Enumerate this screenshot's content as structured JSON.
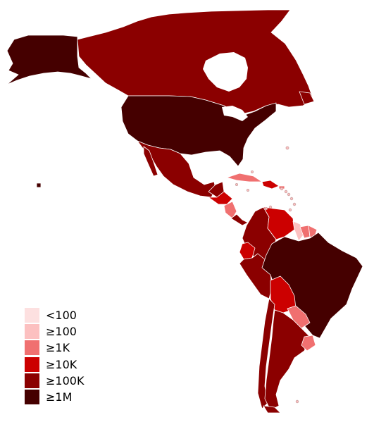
{
  "colors": {
    "lt100": "#fde0e0",
    "ge100": "#fcc0c0",
    "ge1k": "#f07070",
    "ge10k": "#cc0000",
    "ge100k": "#8b0000",
    "ge1m": "#450000"
  },
  "legend": [
    {
      "label": "<100",
      "color": "#fde0e0"
    },
    {
      "label": "≥100",
      "color": "#fcc0c0"
    },
    {
      "label": "≥1K",
      "color": "#f07070"
    },
    {
      "label": "≥10K",
      "color": "#cc0000"
    },
    {
      "label": "≥100K",
      "color": "#8b0000"
    },
    {
      "label": "≥1M",
      "color": "#450000"
    }
  ]
}
